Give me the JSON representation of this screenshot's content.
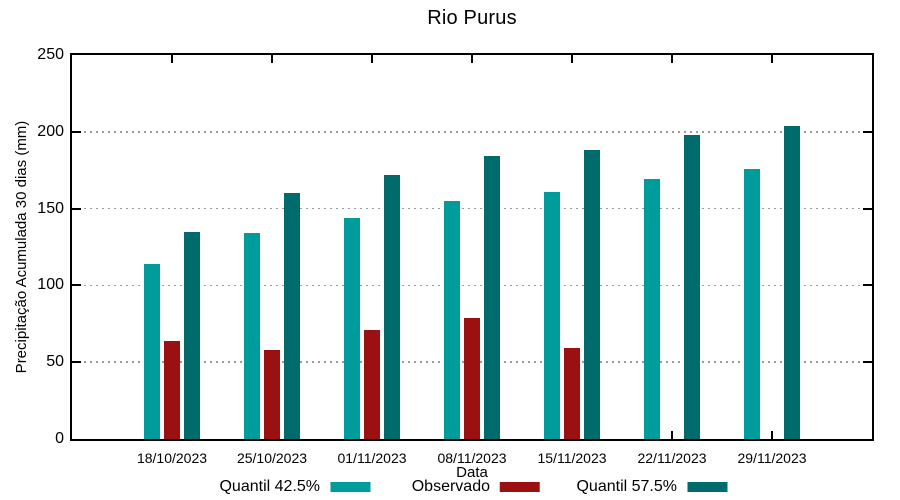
{
  "chart_data": {
    "type": "bar",
    "title": "Rio Purus",
    "xlabel": "Data",
    "ylabel": "Precipitação Acumulada 30 dias (mm)",
    "ylim": [
      0,
      250
    ],
    "yticks": [
      0,
      50,
      100,
      150,
      200,
      250
    ],
    "grid": "horizontal-dotted",
    "legend_position": "bottom",
    "categories": [
      "18/10/2023",
      "25/10/2023",
      "01/11/2023",
      "08/11/2023",
      "15/11/2023",
      "22/11/2023",
      "29/11/2023"
    ],
    "series": [
      {
        "name": "Quantil 42.5%",
        "color": "#009B9B",
        "values": [
          114,
          134,
          144,
          155,
          161,
          169,
          176
        ]
      },
      {
        "name": "Observado",
        "color": "#9B1111",
        "values": [
          64,
          58,
          71,
          79,
          59,
          null,
          null
        ]
      },
      {
        "name": "Quantil 57.5%",
        "color": "#016A6A",
        "values": [
          135,
          160,
          172,
          184,
          188,
          198,
          204
        ]
      }
    ]
  }
}
